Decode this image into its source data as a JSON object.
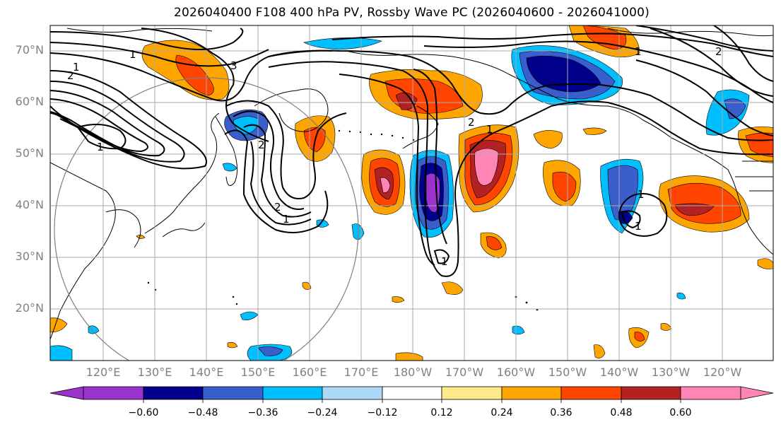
{
  "title": "2026040400 F108 400 hPa PV, Rossby Wave PC (2026040600 - 2026041000)",
  "map": {
    "lat_labels": [
      "70°N",
      "60°N",
      "50°N",
      "40°N",
      "30°N",
      "20°N"
    ],
    "lon_labels": [
      "120°E",
      "130°E",
      "140°E",
      "150°E",
      "160°E",
      "170°E",
      "180°W",
      "170°W",
      "160°W",
      "150°W",
      "140°W",
      "130°W",
      "120°W"
    ],
    "contour_labels": [
      "1",
      "2",
      "1",
      "3",
      "1",
      "2",
      "1",
      "2",
      "2",
      "1",
      "1",
      "1",
      "1",
      "1",
      "2"
    ]
  },
  "colorbar": {
    "ticks": [
      "−0.60",
      "−0.48",
      "−0.36",
      "−0.24",
      "−0.12",
      "0.12",
      "0.24",
      "0.36",
      "0.48",
      "0.60"
    ],
    "colors": [
      "#9933cc",
      "#00008b",
      "#3a5fcd",
      "#00bfff",
      "#add8f7",
      "#ffffff",
      "#ffea8a",
      "#ffa500",
      "#ff4500",
      "#b22222",
      "#ff85b5"
    ]
  }
}
